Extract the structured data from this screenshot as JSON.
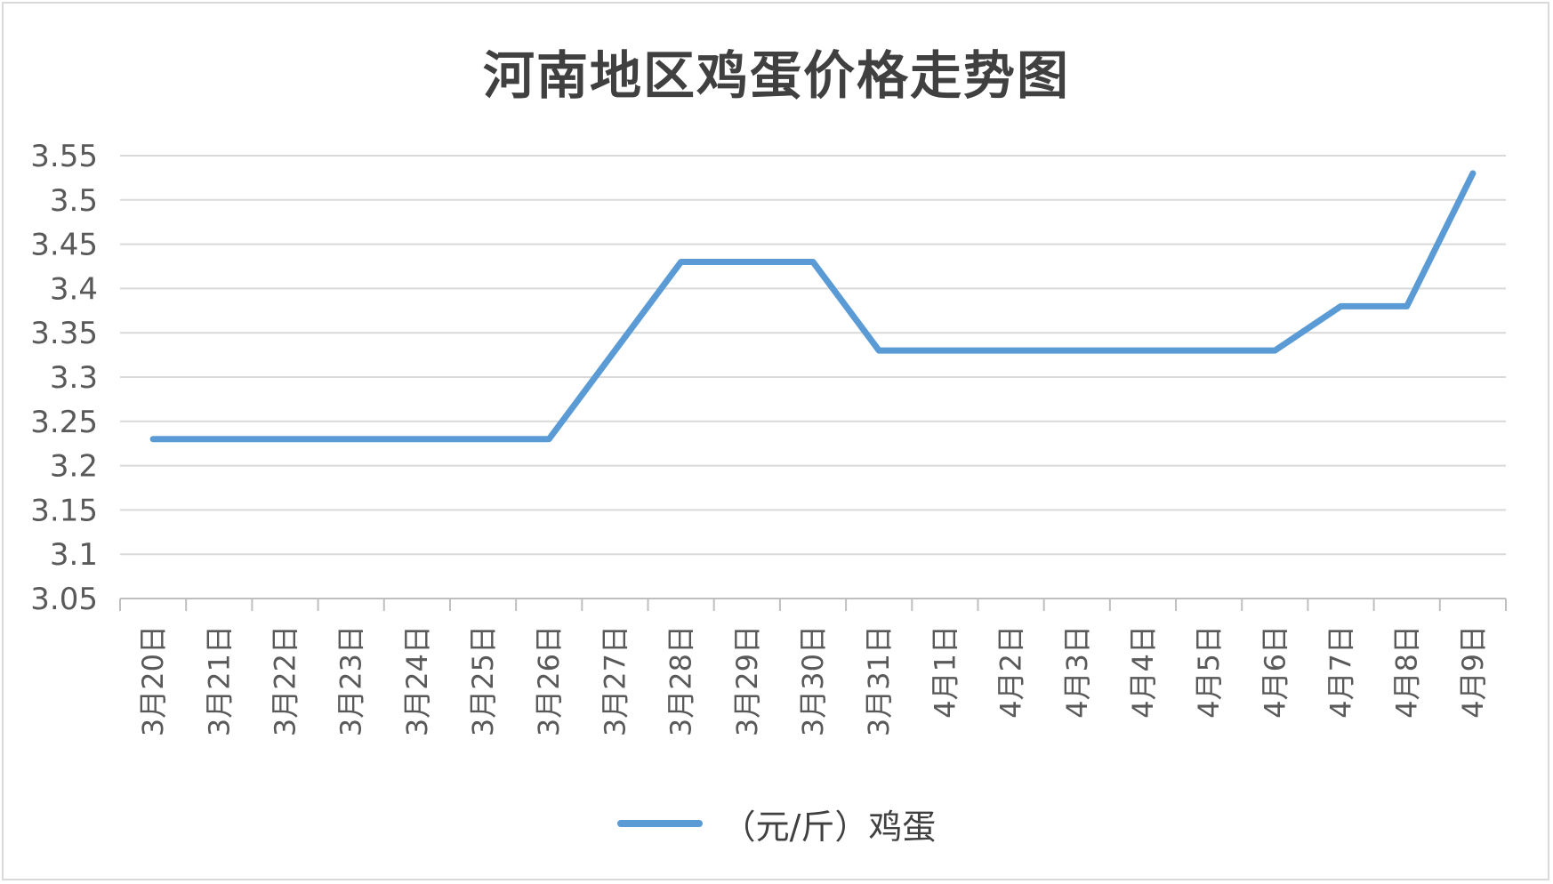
{
  "chart_data": {
    "type": "line",
    "title": "河南地区鸡蛋价格走势图",
    "categories": [
      "3月20日",
      "3月21日",
      "3月22日",
      "3月23日",
      "3月24日",
      "3月25日",
      "3月26日",
      "3月27日",
      "3月28日",
      "3月29日",
      "3月30日",
      "3月31日",
      "4月1日",
      "4月2日",
      "4月3日",
      "4月4日",
      "4月5日",
      "4月6日",
      "4月7日",
      "4月8日",
      "4月9日"
    ],
    "series": [
      {
        "name": "（元/斤）鸡蛋",
        "values": [
          3.23,
          3.23,
          3.23,
          3.23,
          3.23,
          3.23,
          3.23,
          3.33,
          3.43,
          3.43,
          3.43,
          3.33,
          3.33,
          3.33,
          3.33,
          3.33,
          3.33,
          3.33,
          3.38,
          3.38,
          3.53
        ],
        "color": "#5b9bd5"
      }
    ],
    "ylim": [
      3.05,
      3.55
    ],
    "yticks": [
      "3.55",
      "3.5",
      "3.45",
      "3.4",
      "3.35",
      "3.3",
      "3.25",
      "3.2",
      "3.15",
      "3.1",
      "3.05"
    ],
    "grid": true,
    "legend_position": "bottom"
  }
}
